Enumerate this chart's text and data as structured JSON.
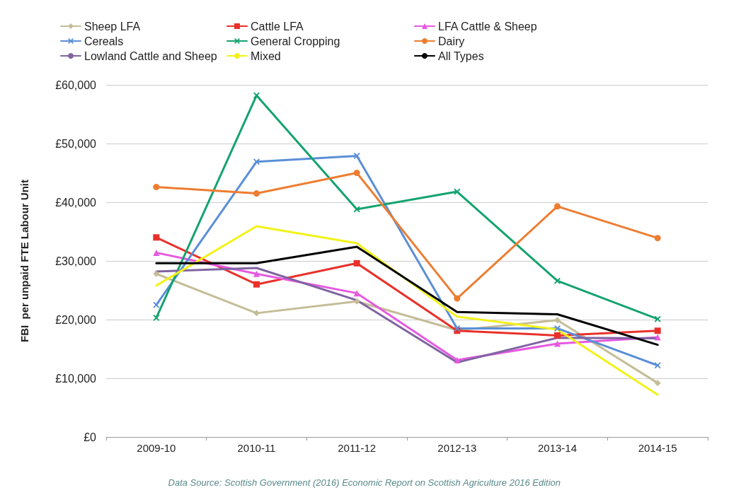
{
  "chart_data": {
    "type": "line",
    "ylabel": "FBI  per unpaid FTE Labour Unit",
    "categories": [
      "2009-10",
      "2010-11",
      "2011-12",
      "2012-13",
      "2013-14",
      "2014-15"
    ],
    "ylim": [
      0,
      60000
    ],
    "yticks": [
      {
        "value": 0,
        "label": "£0"
      },
      {
        "value": 10000,
        "label": "£10,000"
      },
      {
        "value": 20000,
        "label": "£20,000"
      },
      {
        "value": 30000,
        "label": "£30,000"
      },
      {
        "value": 40000,
        "label": "£40,000"
      },
      {
        "value": 50000,
        "label": "£50,000"
      },
      {
        "value": 60000,
        "label": "£60,000"
      }
    ],
    "grid": "y",
    "legend": "top",
    "line_style": "solid",
    "series": [
      {
        "name": "Sheep LFA",
        "color": "#c4bd97",
        "marker": "diamond",
        "values": [
          27800,
          21100,
          23100,
          18200,
          19900,
          9200
        ]
      },
      {
        "name": "Cattle LFA",
        "color": "#e8312b",
        "marker": "square",
        "values": [
          34000,
          26000,
          29600,
          18100,
          17300,
          18100
        ]
      },
      {
        "name": "LFA Cattle & Sheep",
        "color": "#e659e0",
        "marker": "triangle",
        "values": [
          31400,
          27800,
          24500,
          13100,
          15900,
          17000
        ]
      },
      {
        "name": "Cereals",
        "color": "#5b8fd6",
        "marker": "cross",
        "values": [
          22500,
          46900,
          47900,
          18500,
          18500,
          12200
        ]
      },
      {
        "name": "General Cropping",
        "color": "#14a36f",
        "marker": "cross",
        "values": [
          20300,
          58200,
          38800,
          41800,
          26600,
          20100
        ]
      },
      {
        "name": "Dairy",
        "color": "#ed7d31",
        "marker": "circle",
        "values": [
          42600,
          41500,
          45000,
          23600,
          39300,
          33900
        ]
      },
      {
        "name": "Lowland Cattle and Sheep",
        "color": "#8064a2",
        "marker": "none",
        "values": [
          28200,
          28800,
          23300,
          12700,
          16900,
          16800
        ]
      },
      {
        "name": "Mixed",
        "color": "#f2f21a",
        "marker": "none",
        "values": [
          25800,
          35900,
          33000,
          20500,
          18300,
          7200
        ]
      },
      {
        "name": "All Types",
        "color": "#000000",
        "marker": "none",
        "values": [
          29600,
          29600,
          32400,
          21300,
          20900,
          15700
        ]
      }
    ],
    "annotations": [
      "Data Source: Scottish Government (2016) Economic Report on Scottish Agriculture 2016 Edition"
    ]
  }
}
